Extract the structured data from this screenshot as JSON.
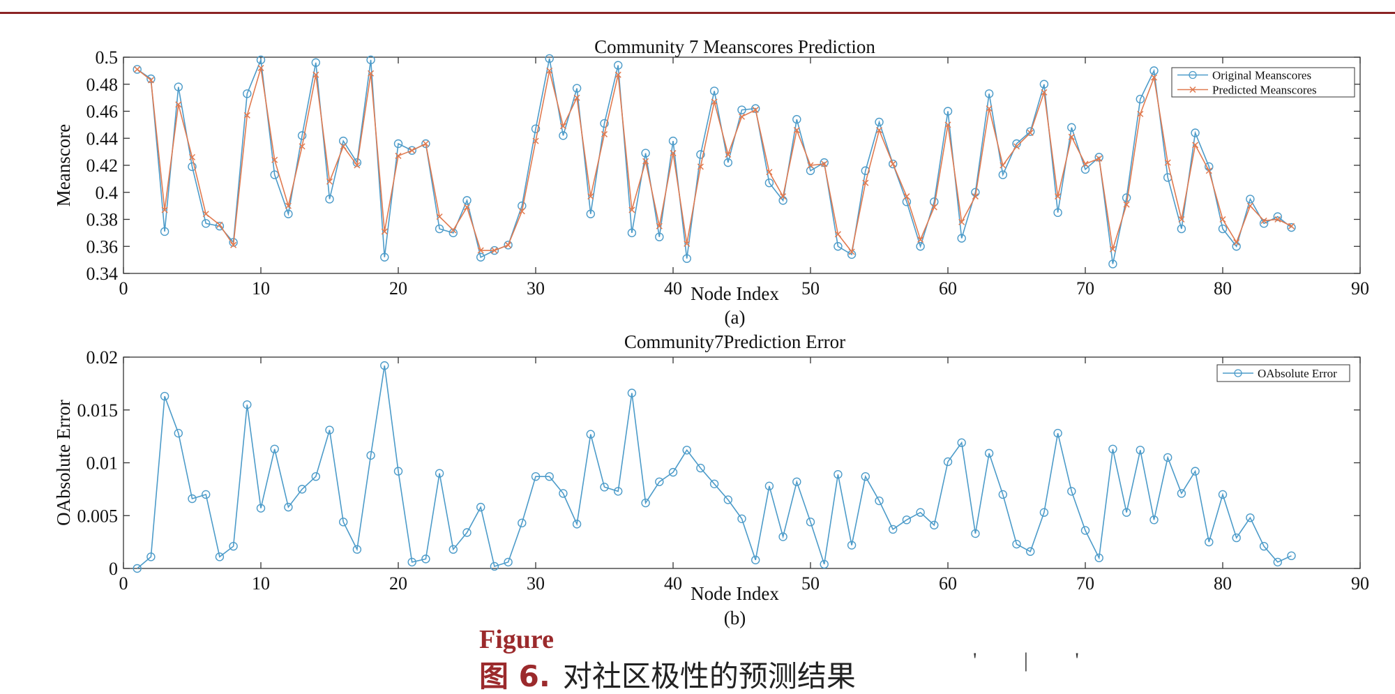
{
  "figure": {
    "caption_en": "Figure",
    "caption_cn_label": "图 6.",
    "caption_cn_text": "对社区极性的预测结果",
    "stray_marks": "' | '"
  },
  "colors": {
    "rule": "#8b2324",
    "original": "#4c9bc9",
    "predicted": "#e07a50",
    "axis": "#333333"
  },
  "chart_data": [
    {
      "type": "line",
      "panel_label": "(a)",
      "title": "Community 7 Meanscores Prediction",
      "xlabel": "Node Index",
      "ylabel": "Meanscore",
      "xlim": [
        0,
        90
      ],
      "ylim": [
        0.34,
        0.5
      ],
      "xticks": [
        0,
        10,
        20,
        30,
        40,
        50,
        60,
        70,
        80,
        90
      ],
      "xtick_labels": [
        "0",
        "10",
        "20",
        "30",
        "40",
        "50",
        "60",
        "70",
        "80",
        "90"
      ],
      "yticks": [
        0.34,
        0.36,
        0.38,
        0.4,
        0.42,
        0.44,
        0.46,
        0.48,
        0.5
      ],
      "ytick_labels": [
        "0.34",
        "0.36",
        "0.38",
        "0.4",
        "0.42",
        "0.44",
        "0.46",
        "0.48",
        "0.5"
      ],
      "legend": [
        "Original Meanscores",
        "Predicted Meanscores"
      ],
      "legend_position": "top-right",
      "grid": false,
      "series": [
        {
          "name": "Original Meanscores",
          "marker": "circle",
          "values": [
            0.491,
            0.484,
            0.371,
            0.478,
            0.419,
            0.377,
            0.375,
            0.363,
            0.473,
            0.498,
            0.413,
            0.384,
            0.442,
            0.496,
            0.395,
            0.438,
            0.422,
            0.498,
            0.352,
            0.436,
            0.431,
            0.436,
            0.373,
            0.37,
            0.394,
            0.352,
            0.357,
            0.361,
            0.39,
            0.447,
            0.499,
            0.442,
            0.477,
            0.384,
            0.451,
            0.494,
            0.37,
            0.429,
            0.367,
            0.438,
            0.351,
            0.428,
            0.475,
            0.422,
            0.461,
            0.462,
            0.407,
            0.394,
            0.454,
            0.416,
            0.422,
            0.36,
            0.354,
            0.416,
            0.452,
            0.421,
            0.393,
            0.36,
            0.393,
            0.46,
            0.366,
            0.4,
            0.473,
            0.413,
            0.436,
            0.445,
            0.48,
            0.385,
            0.448,
            0.417,
            0.426,
            0.347,
            0.396,
            0.469,
            0.49,
            0.411,
            0.373,
            0.444,
            0.419,
            0.373,
            0.36,
            0.395,
            0.377,
            0.382,
            0.374
          ]
        },
        {
          "name": "Predicted Meanscores",
          "marker": "x",
          "values": [
            0.491,
            0.483,
            0.387,
            0.465,
            0.426,
            0.384,
            0.376,
            0.361,
            0.457,
            0.492,
            0.424,
            0.39,
            0.434,
            0.487,
            0.408,
            0.434,
            0.42,
            0.488,
            0.371,
            0.427,
            0.431,
            0.436,
            0.382,
            0.372,
            0.389,
            0.357,
            0.357,
            0.361,
            0.386,
            0.438,
            0.49,
            0.449,
            0.47,
            0.397,
            0.443,
            0.487,
            0.387,
            0.423,
            0.375,
            0.429,
            0.362,
            0.419,
            0.467,
            0.428,
            0.456,
            0.461,
            0.415,
            0.397,
            0.446,
            0.42,
            0.421,
            0.369,
            0.356,
            0.407,
            0.446,
            0.421,
            0.397,
            0.365,
            0.389,
            0.45,
            0.378,
            0.397,
            0.462,
            0.42,
            0.434,
            0.444,
            0.474,
            0.397,
            0.441,
            0.421,
            0.425,
            0.358,
            0.391,
            0.458,
            0.485,
            0.422,
            0.38,
            0.435,
            0.416,
            0.38,
            0.363,
            0.39,
            0.379,
            0.38,
            0.375
          ]
        }
      ]
    },
    {
      "type": "line",
      "panel_label": "(b)",
      "title": "Community7Prediction Error",
      "xlabel": "Node Index",
      "ylabel": "OAbsolute Error",
      "xlim": [
        0,
        90
      ],
      "ylim": [
        0,
        0.02
      ],
      "xticks": [
        0,
        10,
        20,
        30,
        40,
        50,
        60,
        70,
        80,
        90
      ],
      "xtick_labels": [
        "0",
        "10",
        "20",
        "30",
        "40",
        "50",
        "60",
        "70",
        "80",
        "90"
      ],
      "yticks": [
        0,
        0.005,
        0.01,
        0.015,
        0.02
      ],
      "ytick_labels": [
        "0",
        "0.005",
        "0.01",
        "0.015",
        "0.02"
      ],
      "legend": [
        "OAbsolute Error"
      ],
      "legend_position": "top-right",
      "grid": false,
      "series": [
        {
          "name": "OAbsolute Error",
          "marker": "circle",
          "values": [
            0.0,
            0.0011,
            0.0163,
            0.0128,
            0.0066,
            0.007,
            0.0011,
            0.0021,
            0.0155,
            0.0057,
            0.0113,
            0.0058,
            0.0075,
            0.0087,
            0.0131,
            0.0044,
            0.0018,
            0.0107,
            0.0192,
            0.0092,
            0.0006,
            0.0009,
            0.009,
            0.0018,
            0.0034,
            0.0058,
            0.0002,
            0.0006,
            0.0043,
            0.0087,
            0.0087,
            0.0071,
            0.0042,
            0.0127,
            0.0077,
            0.0073,
            0.0166,
            0.0062,
            0.0082,
            0.0091,
            0.0112,
            0.0095,
            0.008,
            0.0065,
            0.0047,
            0.0008,
            0.0078,
            0.003,
            0.0082,
            0.0044,
            0.0004,
            0.0089,
            0.0022,
            0.0087,
            0.0064,
            0.0037,
            0.0046,
            0.0053,
            0.0041,
            0.0101,
            0.0119,
            0.0033,
            0.0109,
            0.007,
            0.0023,
            0.0016,
            0.0053,
            0.0128,
            0.0073,
            0.0036,
            0.001,
            0.0113,
            0.0053,
            0.0112,
            0.0046,
            0.0105,
            0.0071,
            0.0092,
            0.0025,
            0.007,
            0.0029,
            0.0048,
            0.0021,
            0.0006,
            0.0012
          ]
        }
      ]
    }
  ]
}
